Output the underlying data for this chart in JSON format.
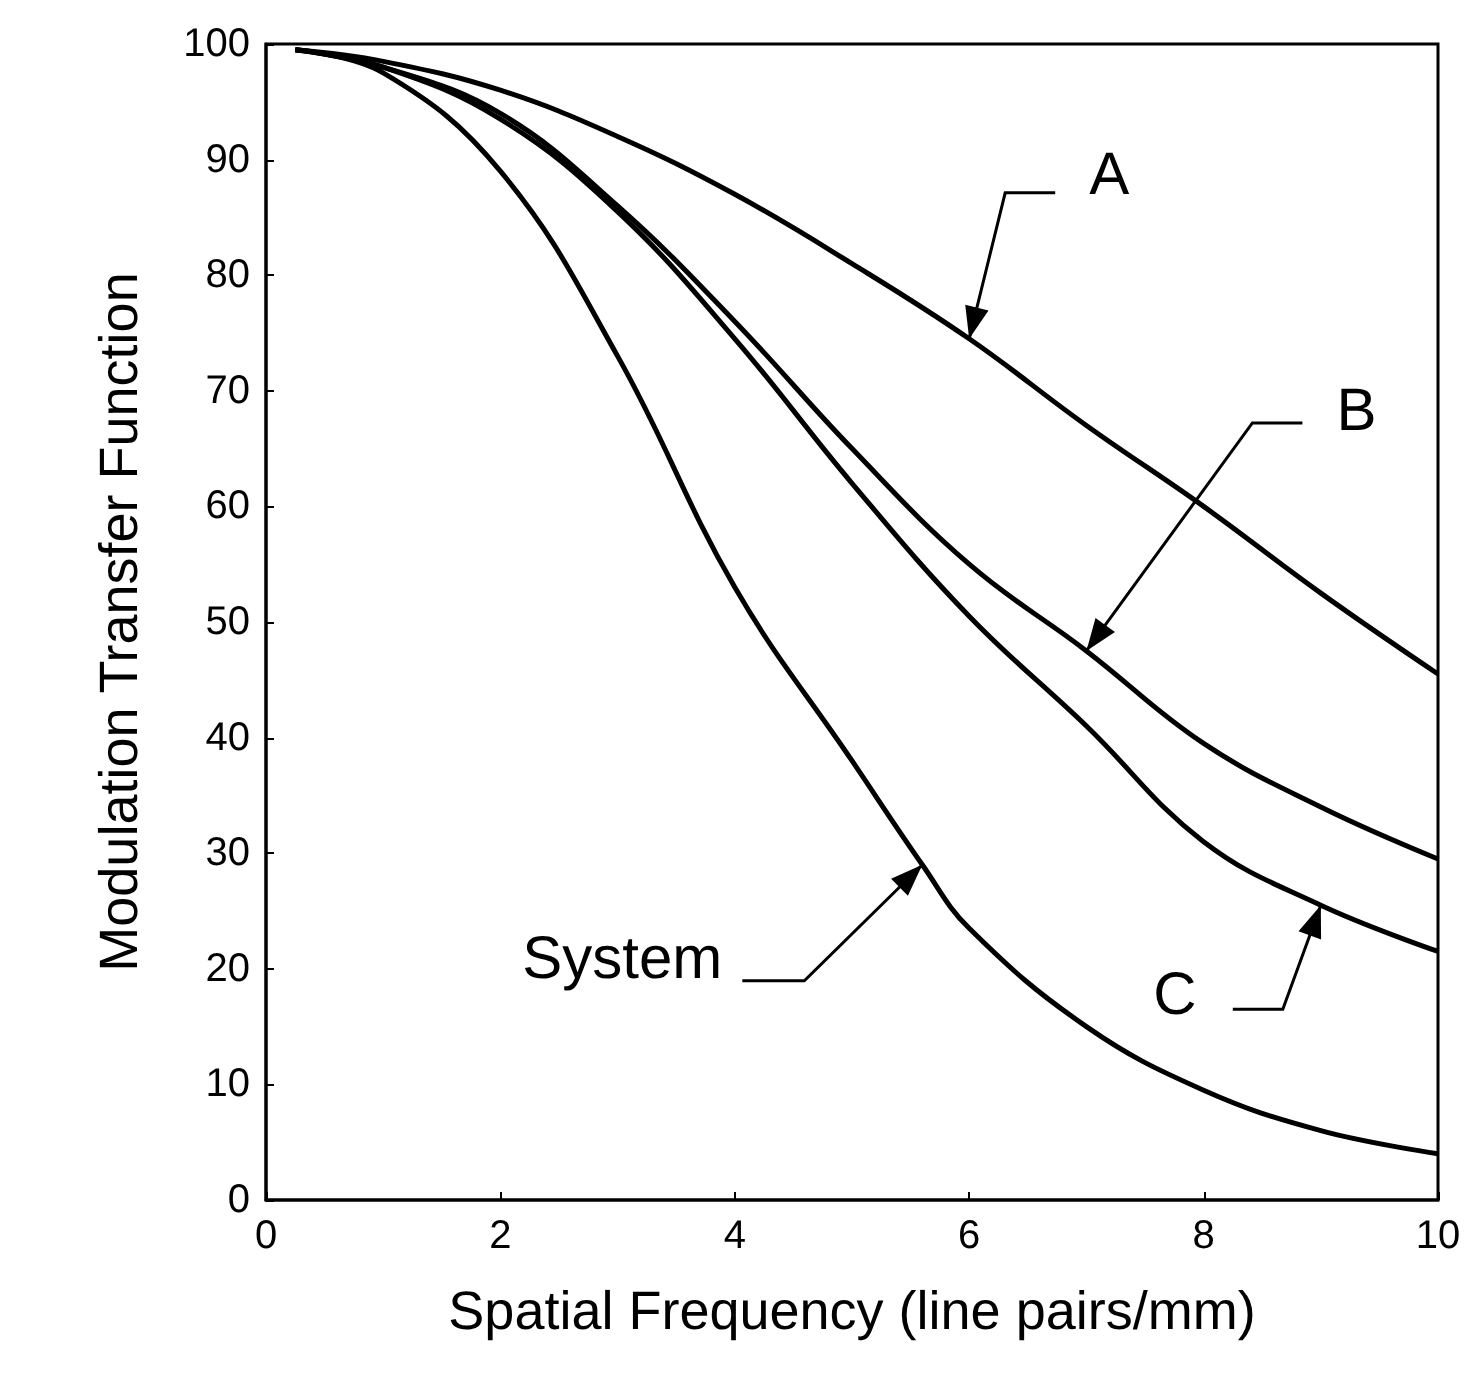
{
  "chart_data": {
    "type": "line",
    "xlabel": "Spatial Frequency (line pairs/mm)",
    "ylabel": "Modulation Transfer Function",
    "xlim": [
      0,
      10
    ],
    "xticks": [
      0,
      2,
      4,
      6,
      8,
      10
    ],
    "ylim": [
      0,
      100
    ],
    "yticks": [
      0,
      10,
      20,
      30,
      40,
      50,
      60,
      70,
      80,
      90,
      100
    ],
    "grid": false,
    "marker": "none",
    "line_style": "solid",
    "series": [
      {
        "color": "#000000",
        "x": [
          0.25,
          1,
          2,
          3,
          4,
          5,
          6,
          7,
          8,
          9,
          10
        ],
        "values": [
          99.5,
          98.5,
          96,
          92,
          87,
          81,
          74.5,
          67,
          60,
          52.5,
          45.5
        ]
      },
      {
        "color": "#000000",
        "x": [
          0.25,
          1,
          2,
          3,
          4,
          5,
          6,
          7,
          8,
          9,
          10
        ],
        "values": [
          99.5,
          98,
          94,
          86,
          76,
          65,
          55,
          47.5,
          39.5,
          34,
          29.5
        ]
      },
      {
        "color": "#000000",
        "x": [
          0.25,
          1,
          2,
          3,
          4,
          5,
          6,
          7,
          8,
          9,
          10
        ],
        "values": [
          99.5,
          98,
          93.5,
          85.5,
          74.5,
          62,
          50.5,
          41,
          31,
          25.5,
          21.5
        ]
      },
      {
        "color": "#000000",
        "x": [
          0.25,
          1,
          2,
          3,
          4,
          5,
          5.6,
          6,
          7,
          8,
          9,
          10
        ],
        "values": [
          99.5,
          97.5,
          89,
          73,
          53,
          38,
          29,
          23.5,
          15,
          9.5,
          6,
          4
        ]
      }
    ],
    "annotations": [
      {
        "text": "A",
        "x": 6,
        "y": 74.5
      },
      {
        "text": "B",
        "x": 7,
        "y": 47.5
      },
      {
        "text": "C",
        "x": 9,
        "y": 25.5
      },
      {
        "text": "System",
        "x": 5.6,
        "y": 29
      }
    ]
  }
}
